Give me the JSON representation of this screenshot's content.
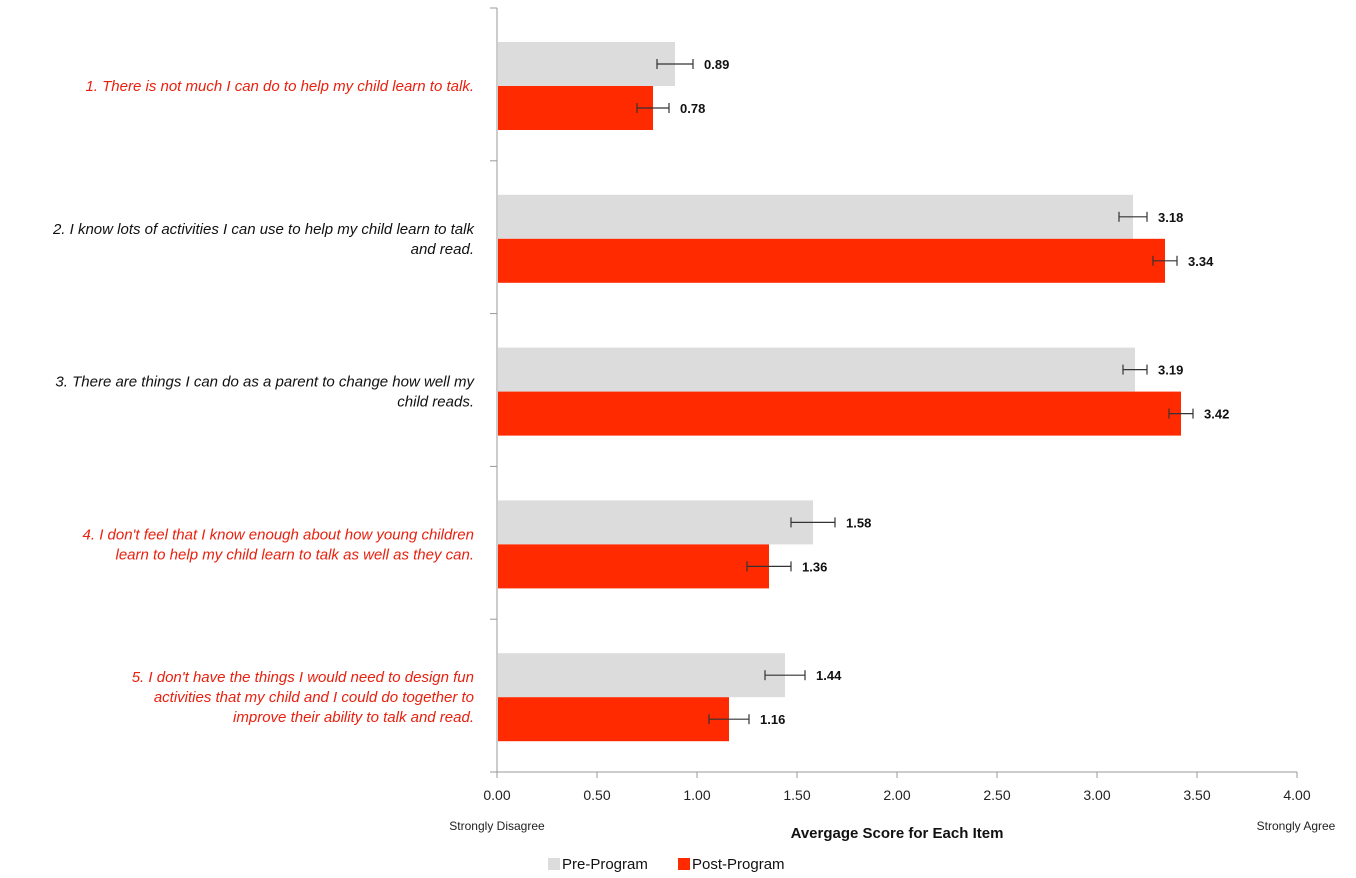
{
  "chart_data": {
    "type": "bar",
    "orientation": "horizontal",
    "categories": [
      "1. There is not much I can do to help my child learn to talk.",
      "2. I know lots of activities I can use to help my child learn to talk and read.",
      "3. There are things I can do as a parent to change how well my child reads.",
      "4. I don't feel that I know enough about how young children learn to help my child learn to talk as well as they can.",
      "5. I don't have the things I would need to design fun activities that my child and I could do together to improve their ability to talk and read."
    ],
    "category_lines": [
      [
        "1. There is not much I can do to help my child learn to talk."
      ],
      [
        "2. I know lots of activities I can use to help my child learn to talk",
        "and read."
      ],
      [
        "3. There are things I can do as a parent to change how well my",
        "child reads."
      ],
      [
        "4. I don't feel that I know enough about how young children",
        "learn to help my child learn to talk as well as they can."
      ],
      [
        "5. I don't have the things I would need to design fun",
        "activities that my child and I could do together to",
        "improve their ability to talk and read."
      ]
    ],
    "category_colors": [
      "#e8210f",
      "#111111",
      "#111111",
      "#e8210f",
      "#e8210f"
    ],
    "series": [
      {
        "name": "Pre-Program",
        "color": "#dcdcdc",
        "values": [
          0.89,
          3.18,
          3.19,
          1.58,
          1.44
        ],
        "labels": [
          "0.89",
          "3.18",
          "3.19",
          "1.58",
          "1.44"
        ],
        "error": [
          0.09,
          0.07,
          0.06,
          0.11,
          0.1
        ]
      },
      {
        "name": "Post-Program",
        "color": "#ff2a00",
        "values": [
          0.78,
          3.34,
          3.42,
          1.36,
          1.16
        ],
        "labels": [
          "0.78",
          "3.34",
          "3.42",
          "1.36",
          "1.16"
        ],
        "error": [
          0.08,
          0.06,
          0.06,
          0.11,
          0.1
        ]
      }
    ],
    "xlim": [
      0,
      4
    ],
    "xticks": [
      0,
      0.5,
      1,
      1.5,
      2,
      2.5,
      3,
      3.5,
      4
    ],
    "xtick_labels": [
      "0.00",
      "0.50",
      "1.00",
      "1.50",
      "2.00",
      "2.50",
      "3.00",
      "3.50",
      "4.00"
    ],
    "xlabel": "Avergage Score for Each Item",
    "x_anchor_left": "Strongly Disagree",
    "x_anchor_right": "Strongly Agree",
    "legend_position": "bottom",
    "grid": false
  }
}
